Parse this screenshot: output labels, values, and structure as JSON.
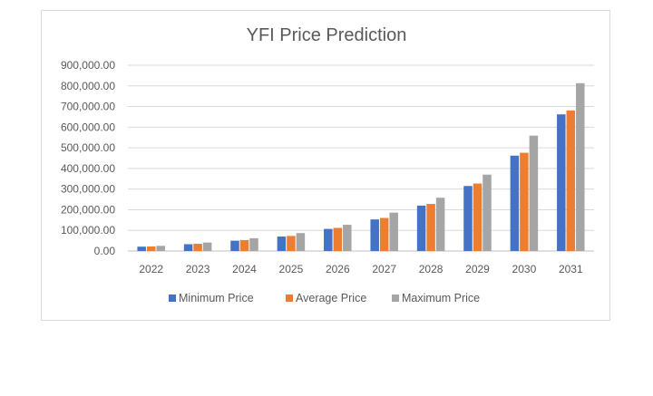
{
  "chart_data": {
    "type": "bar",
    "title": "YFI Price Prediction",
    "categories": [
      "2022",
      "2023",
      "2024",
      "2025",
      "2026",
      "2027",
      "2028",
      "2029",
      "2030",
      "2031"
    ],
    "series": [
      {
        "name": "Minimum Price",
        "color": "#4472C4",
        "values": [
          21000,
          33000,
          50000,
          70000,
          107000,
          153000,
          220000,
          315000,
          462000,
          662000
        ]
      },
      {
        "name": "Average Price",
        "color": "#ED7D31",
        "values": [
          22000,
          35000,
          53000,
          73000,
          112000,
          160000,
          228000,
          327000,
          476000,
          681000
        ]
      },
      {
        "name": "Maximum Price",
        "color": "#A5A5A5",
        "values": [
          25000,
          41000,
          62000,
          87000,
          127000,
          186000,
          258000,
          370000,
          559000,
          813000
        ]
      }
    ],
    "ylim": [
      0,
      900000
    ],
    "yticks": [
      "0.00",
      "100,000.00",
      "200,000.00",
      "300,000.00",
      "400,000.00",
      "500,000.00",
      "600,000.00",
      "700,000.00",
      "800,000.00",
      "900,000.00"
    ],
    "xlabel": "",
    "ylabel": "",
    "grid": true,
    "legend_position": "bottom"
  }
}
